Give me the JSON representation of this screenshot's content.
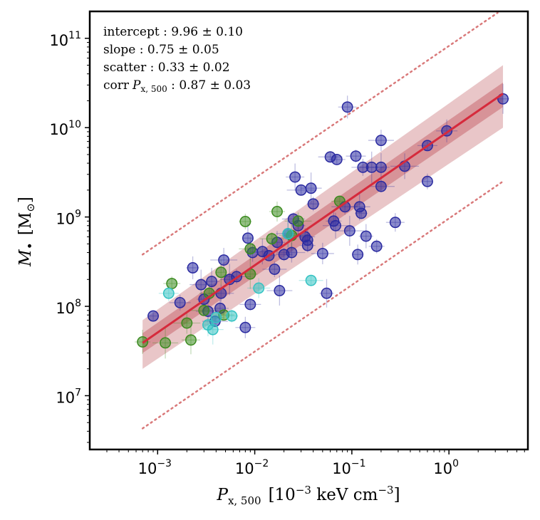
{
  "chart_data": {
    "type": "scatter",
    "xscale": "log",
    "yscale": "log",
    "xlim": [
      0.0002,
      6.5
    ],
    "ylim": [
      2500000,
      200000000000
    ],
    "x_ticks": [
      {
        "value": 0.001,
        "base": "10",
        "exp": "−3"
      },
      {
        "value": 0.01,
        "base": "10",
        "exp": "−2"
      },
      {
        "value": 0.1,
        "base": "10",
        "exp": "−1"
      },
      {
        "value": 1,
        "base": "10",
        "exp": "0"
      }
    ],
    "y_ticks": [
      {
        "value": 10000000,
        "base": "10",
        "exp": "7"
      },
      {
        "value": 100000000,
        "base": "10",
        "exp": "8"
      },
      {
        "value": 1000000000,
        "base": "10",
        "exp": "9"
      },
      {
        "value": 10000000000,
        "base": "10",
        "exp": "10"
      },
      {
        "value": 100000000000,
        "base": "10",
        "exp": "11"
      }
    ],
    "xlabel": {
      "main": "P",
      "sub": "x, 500",
      "unit_open": "[10",
      "unit_exp": "−3",
      "unit_rest": " keV cm",
      "unit_exp2": "−3",
      "unit_close": "]"
    },
    "ylabel": {
      "main": "M",
      "sub": "•",
      "unit": "[M",
      "unit_sub": "⊙",
      "unit_close": "]"
    },
    "stats": [
      {
        "label": "intercept",
        "value": "9.96 ± 0.10"
      },
      {
        "label": "slope",
        "value": "0.75 ± 0.05"
      },
      {
        "label": "scatter",
        "value": "0.33 ± 0.02"
      },
      {
        "label": "corr",
        "label_math": "P",
        "label_sub": "x, 500",
        "value": "0.87 ± 0.03"
      }
    ],
    "fit": {
      "x_range": [
        0.0007,
        3.6
      ],
      "y_start": 39000000,
      "y_end": 24000000000,
      "inner_band_start": [
        30000000,
        50000000
      ],
      "inner_band_end": [
        17000000000,
        32000000000
      ],
      "outer_band_start": [
        20000000,
        70000000
      ],
      "outer_band_end": [
        10000000000,
        50000000000
      ],
      "scatter_lines": {
        "lower_start": 4300000,
        "lower_end": 2500000000,
        "upper_start": 380000000,
        "upper_end": 220000000000
      }
    },
    "colors": {
      "fit_line": "#d62a3c",
      "inner_band": "#c2555e",
      "outer_band": "#dba0a4",
      "scatter_line": "#d9797a",
      "series_a": "#2a2aa0",
      "series_b": "#3a8a1e",
      "series_c": "#33c2c2"
    },
    "series": [
      {
        "color_key": "series_a",
        "points": [
          [
            0.0009,
            78000000
          ],
          [
            0.0017,
            110000000
          ],
          [
            0.0023,
            270000000
          ],
          [
            0.0028,
            175000000
          ],
          [
            0.003,
            120000000
          ],
          [
            0.0033,
            88000000
          ],
          [
            0.0036,
            190000000
          ],
          [
            0.0039,
            68000000
          ],
          [
            0.0044,
            95000000
          ],
          [
            0.0048,
            330000000
          ],
          [
            0.0055,
            200000000
          ],
          [
            0.0065,
            215000000
          ],
          [
            0.008,
            58000000
          ],
          [
            0.0085,
            580000000
          ],
          [
            0.009,
            105000000
          ],
          [
            0.0095,
            400000000
          ],
          [
            0.012,
            410000000
          ],
          [
            0.014,
            370000000
          ],
          [
            0.016,
            260000000
          ],
          [
            0.017,
            520000000
          ],
          [
            0.018,
            150000000
          ],
          [
            0.02,
            380000000
          ],
          [
            0.024,
            400000000
          ],
          [
            0.026,
            2800000000
          ],
          [
            0.03,
            2000000000
          ],
          [
            0.033,
            600000000
          ],
          [
            0.035,
            550000000
          ],
          [
            0.038,
            2100000000
          ],
          [
            0.04,
            1400000000
          ],
          [
            0.05,
            390000000
          ],
          [
            0.055,
            140000000
          ],
          [
            0.06,
            4700000000
          ],
          [
            0.065,
            900000000
          ],
          [
            0.068,
            800000000
          ],
          [
            0.07,
            4400000000
          ],
          [
            0.085,
            1300000000
          ],
          [
            0.09,
            17000000000
          ],
          [
            0.095,
            700000000
          ],
          [
            0.11,
            4800000000
          ],
          [
            0.115,
            380000000
          ],
          [
            0.12,
            1300000000
          ],
          [
            0.125,
            1100000000
          ],
          [
            0.13,
            3600000000
          ],
          [
            0.14,
            610000000
          ],
          [
            0.16,
            3600000000
          ],
          [
            0.18,
            470000000
          ],
          [
            0.2,
            7200000000
          ],
          [
            0.2,
            3600000000
          ],
          [
            0.2,
            2200000000
          ],
          [
            0.28,
            870000000
          ],
          [
            0.35,
            3700000000
          ],
          [
            0.6,
            6300000000
          ],
          [
            0.6,
            2500000000
          ],
          [
            0.95,
            9200000000
          ],
          [
            3.6,
            21000000000
          ],
          [
            0.025,
            950000000
          ],
          [
            0.028,
            800000000
          ],
          [
            0.022,
            650000000
          ],
          [
            0.035,
            480000000
          ],
          [
            0.0045,
            140000000
          ]
        ]
      },
      {
        "color_key": "series_b",
        "points": [
          [
            0.0007,
            40000000
          ],
          [
            0.0012,
            39000000
          ],
          [
            0.0014,
            180000000
          ],
          [
            0.002,
            65000000
          ],
          [
            0.0022,
            42000000
          ],
          [
            0.003,
            90000000
          ],
          [
            0.0034,
            140000000
          ],
          [
            0.0045,
            240000000
          ],
          [
            0.0048,
            80000000
          ],
          [
            0.008,
            890000000
          ],
          [
            0.009,
            440000000
          ],
          [
            0.009,
            230000000
          ],
          [
            0.015,
            570000000
          ],
          [
            0.017,
            1150000000
          ],
          [
            0.024,
            620000000
          ],
          [
            0.075,
            1500000000
          ],
          [
            0.028,
            900000000
          ]
        ]
      },
      {
        "color_key": "series_c",
        "points": [
          [
            0.0013,
            140000000
          ],
          [
            0.0033,
            62000000
          ],
          [
            0.0037,
            55000000
          ],
          [
            0.0058,
            78000000
          ],
          [
            0.011,
            160000000
          ],
          [
            0.022,
            650000000
          ],
          [
            0.038,
            195000000
          ],
          [
            0.004,
            75000000
          ]
        ]
      }
    ]
  }
}
